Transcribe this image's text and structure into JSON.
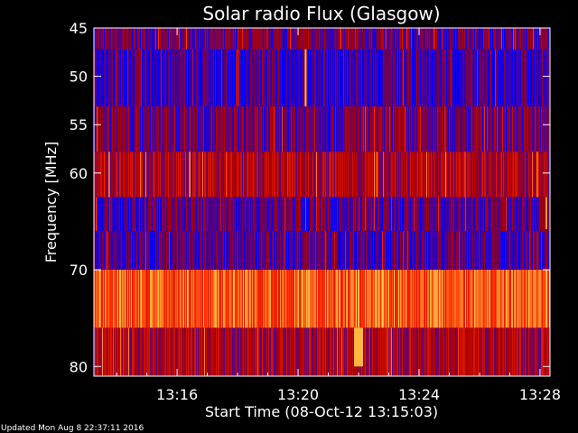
{
  "chart_data": {
    "type": "heatmap",
    "title": "Solar radio Flux (Glasgow)",
    "xlabel": "Start Time (08-Oct-12 13:15:03)",
    "ylabel": "Frequency [MHz]",
    "x_start": "13:15:03",
    "x_end": "13:30:20",
    "xlim_minutes": [
      13.25,
      28.33
    ],
    "ylim": [
      45,
      81
    ],
    "x_ticks": [
      "13:16",
      "13:20",
      "13:24",
      "13:28"
    ],
    "x_tick_minutes": [
      16,
      20,
      24,
      28
    ],
    "y_ticks": [
      "45",
      "50",
      "55",
      "60",
      "70",
      "80"
    ],
    "y_tick_values": [
      45,
      50,
      55,
      60,
      70,
      80
    ],
    "bands": [
      {
        "from_mhz": 45,
        "to_mhz": 47.2,
        "level": 0.18
      },
      {
        "from_mhz": 47.2,
        "to_mhz": 53.1,
        "level": 0.1
      },
      {
        "from_mhz": 53.1,
        "to_mhz": 57.8,
        "level": 0.2
      },
      {
        "from_mhz": 57.8,
        "to_mhz": 62.5,
        "level": 0.34
      },
      {
        "from_mhz": 62.5,
        "to_mhz": 66.0,
        "level": 0.16
      },
      {
        "from_mhz": 66.0,
        "to_mhz": 70.0,
        "level": 0.14
      },
      {
        "from_mhz": 70.0,
        "to_mhz": 76.0,
        "level": 0.72
      },
      {
        "from_mhz": 76.0,
        "to_mhz": 81.0,
        "level": 0.34
      }
    ],
    "bursts": [
      {
        "minute": 20.22,
        "from_mhz": 47.2,
        "to_mhz": 53.1,
        "level": 0.95
      },
      {
        "minute": 21.85,
        "from_mhz": 76.0,
        "to_mhz": 80.0,
        "level": 0.95
      },
      {
        "minute": 28.18,
        "from_mhz": 62.5,
        "to_mhz": 65.8,
        "level": 0.9
      }
    ],
    "colormap": [
      "#0000ff",
      "#b00000",
      "#ff2a00",
      "#ffd04d"
    ],
    "grid": false
  },
  "footer": "Updated Mon Aug  8 22:37:11 2016"
}
